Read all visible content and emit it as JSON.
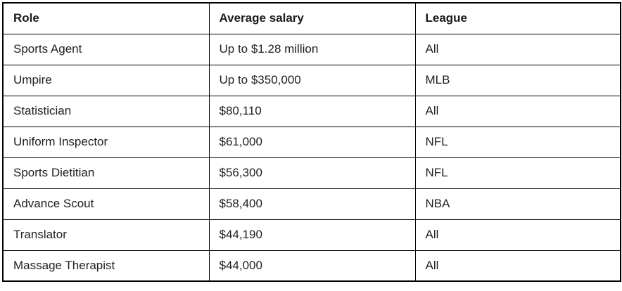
{
  "table": {
    "headers": [
      "Role",
      "Average salary",
      "League"
    ],
    "rows": [
      {
        "role": "Sports Agent",
        "salary": "Up to $1.28 million",
        "league": "All"
      },
      {
        "role": "Umpire",
        "salary": "Up to $350,000",
        "league": "MLB"
      },
      {
        "role": "Statistician",
        "salary": "$80,110",
        "league": "All"
      },
      {
        "role": "Uniform Inspector",
        "salary": "$61,000",
        "league": "NFL"
      },
      {
        "role": "Sports Dietitian",
        "salary": "$56,300",
        "league": "NFL"
      },
      {
        "role": "Advance Scout",
        "salary": "$58,400",
        "league": "NBA"
      },
      {
        "role": "Translator",
        "salary": "$44,190",
        "league": "All"
      },
      {
        "role": "Massage Therapist",
        "salary": "$44,000",
        "league": "All"
      }
    ]
  },
  "colors": {
    "border": "#000000",
    "text": "#202124",
    "background": "#ffffff"
  },
  "chart_data": {
    "type": "table",
    "title": "",
    "columns": [
      "Role",
      "Average salary",
      "League"
    ],
    "rows": [
      [
        "Sports Agent",
        "Up to $1.28 million",
        "All"
      ],
      [
        "Umpire",
        "Up to $350,000",
        "MLB"
      ],
      [
        "Statistician",
        "$80,110",
        "All"
      ],
      [
        "Uniform Inspector",
        "$61,000",
        "NFL"
      ],
      [
        "Sports Dietitian",
        "$56,300",
        "NFL"
      ],
      [
        "Advance Scout",
        "$58,400",
        "NBA"
      ],
      [
        "Translator",
        "$44,190",
        "All"
      ],
      [
        "Massage Therapist",
        "$44,000",
        "All"
      ]
    ],
    "salary_numeric_usd": [
      1280000,
      350000,
      80110,
      61000,
      56300,
      58400,
      44190,
      44000
    ]
  }
}
